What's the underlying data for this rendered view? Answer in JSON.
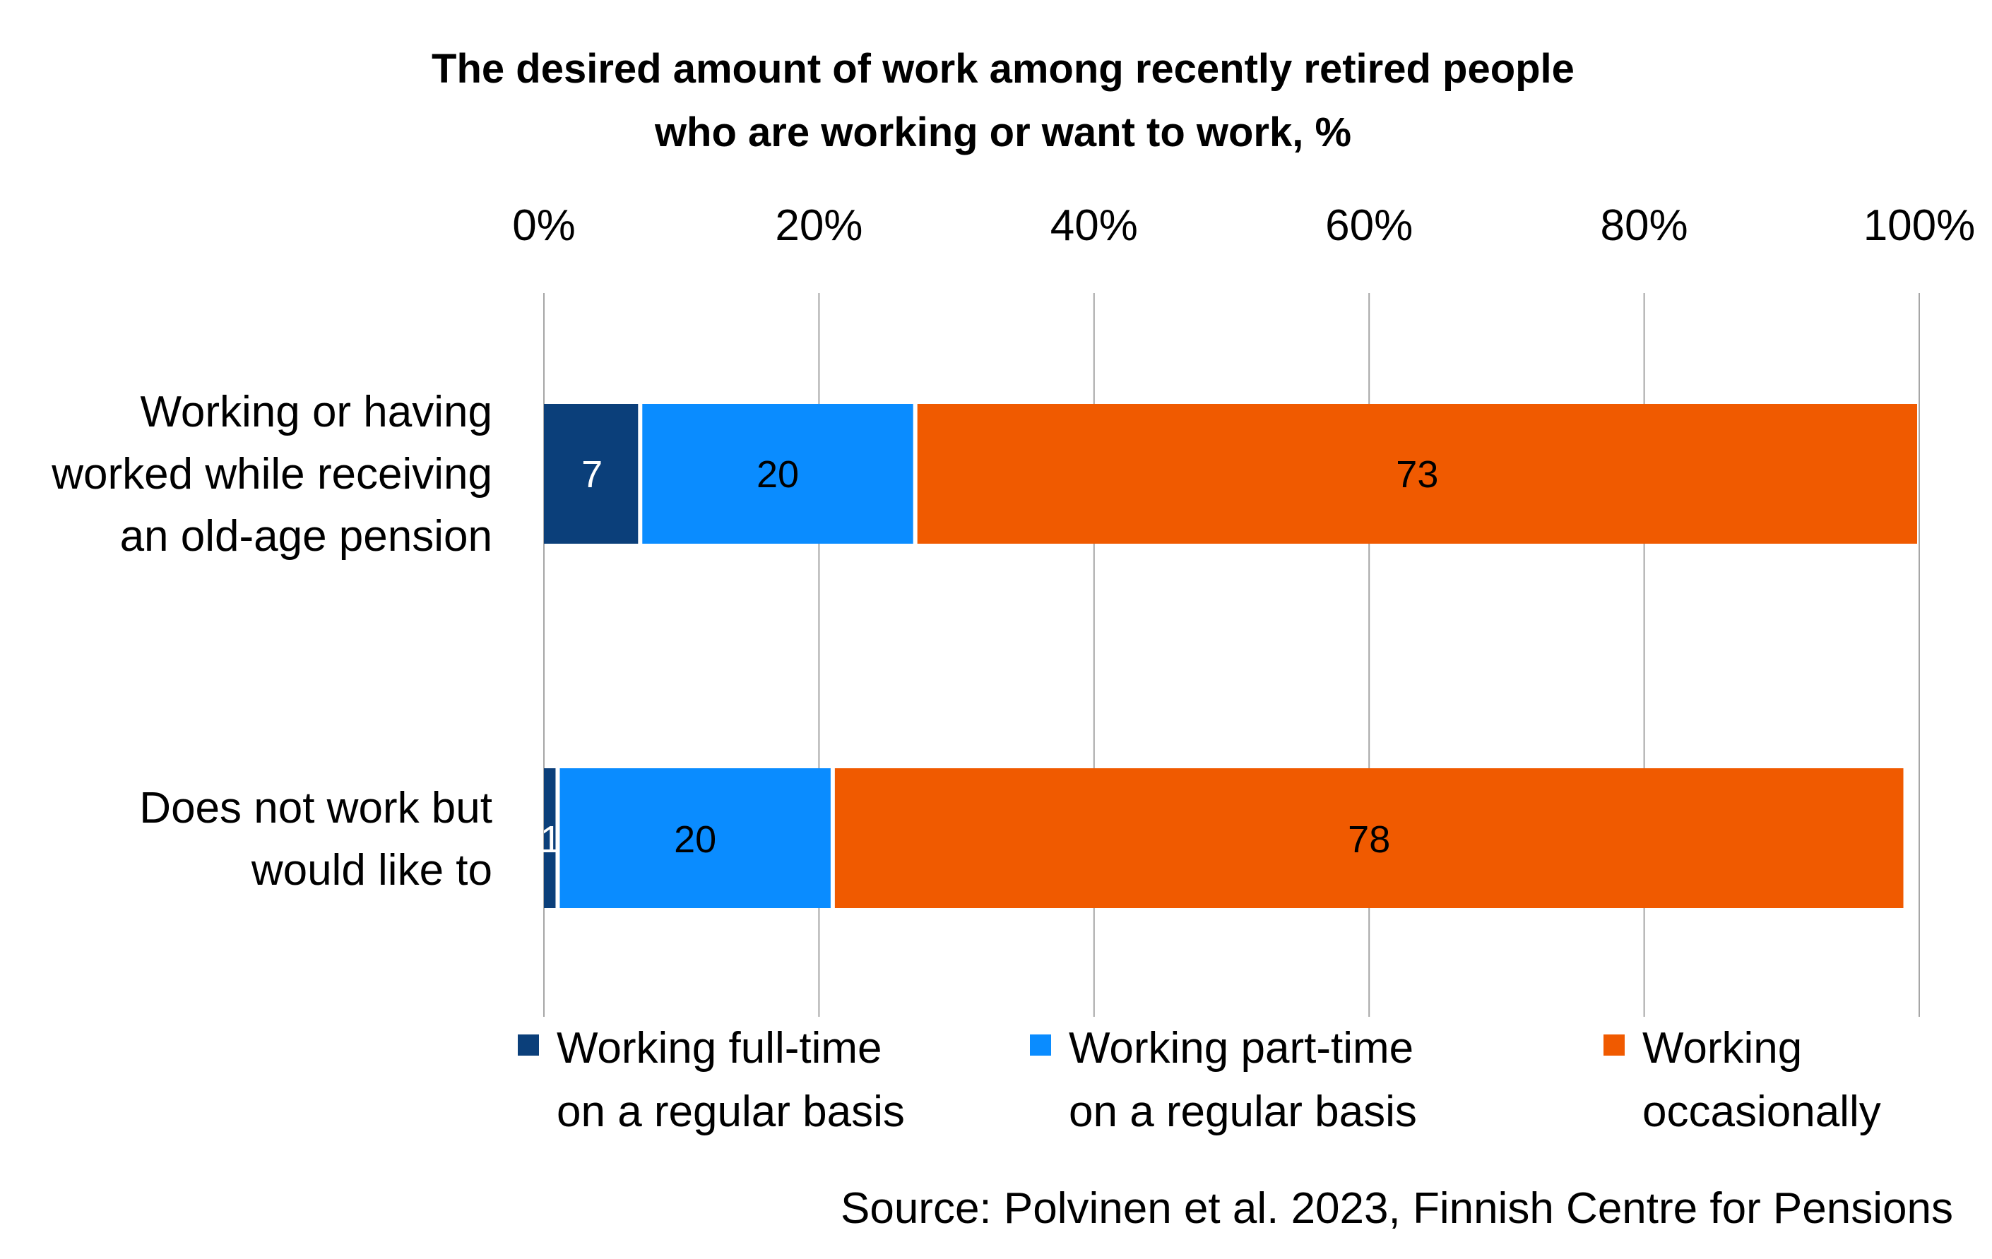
{
  "chart_data": {
    "type": "bar",
    "orientation": "horizontal",
    "stacked": true,
    "title_lines": [
      "The desired amount of work among recently retired people",
      "who are working or want to work, %"
    ],
    "x_ticks": [
      "0%",
      "20%",
      "40%",
      "60%",
      "80%",
      "100%"
    ],
    "xlim": [
      0,
      100
    ],
    "grid": true,
    "legend_position": "bottom",
    "categories": [
      {
        "label_lines": [
          "Working or having",
          "worked while receiving",
          "an old-age pension"
        ]
      },
      {
        "label_lines": [
          "Does not work but",
          "would like to"
        ]
      }
    ],
    "series": [
      {
        "name_lines": [
          "Working full-time",
          "on a regular basis"
        ],
        "color": "#0b3f7a",
        "label_color": "#ffffff",
        "values": [
          7,
          1
        ]
      },
      {
        "name_lines": [
          "Working part-time",
          "on a regular basis"
        ],
        "color": "#0a8cff",
        "label_color": "#000000",
        "values": [
          20,
          20
        ]
      },
      {
        "name_lines": [
          "Working",
          "occasionally"
        ],
        "color": "#f05a00",
        "label_color": "#000000",
        "values": [
          73,
          78
        ]
      }
    ],
    "source": "Source: Polvinen et al. 2023, Finnish Centre for Pensions"
  }
}
